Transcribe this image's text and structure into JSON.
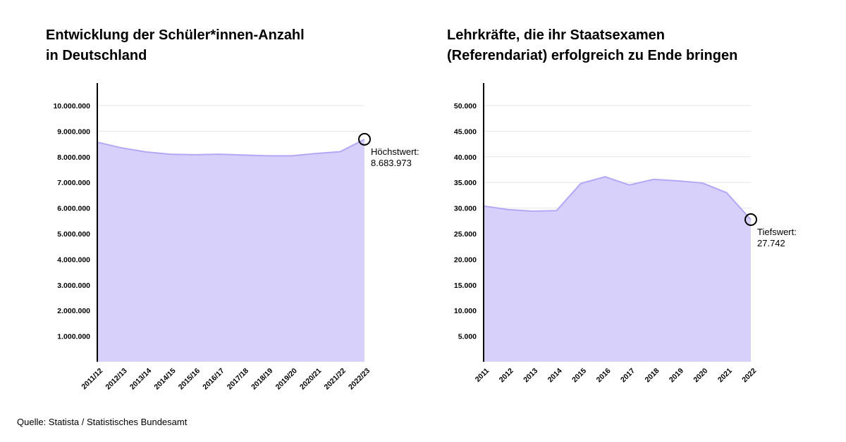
{
  "source": "Quelle: Statista / Statistisches Bundesamt",
  "colors": {
    "fill": "#d6d0fb",
    "line": "#b4a7f7",
    "grid": "#e6e6e6",
    "axis": "#000000"
  },
  "chart_data": [
    {
      "type": "area",
      "title_lines": [
        "Entwicklung der Schüler*innen-Anzahl",
        "in Deutschland"
      ],
      "categories": [
        "2011/12",
        "2012/13",
        "2013/14",
        "2014/15",
        "2015/16",
        "2016/17",
        "2017/18",
        "2018/19",
        "2019/20",
        "2020/21",
        "2021/22",
        "2022/23"
      ],
      "values": [
        8570000,
        8350000,
        8190000,
        8100000,
        8080000,
        8100000,
        8070000,
        8040000,
        8040000,
        8130000,
        8200000,
        8683973
      ],
      "ylim": [
        0,
        10000000
      ],
      "yticks": [
        1000000,
        2000000,
        3000000,
        4000000,
        5000000,
        6000000,
        7000000,
        8000000,
        9000000,
        10000000
      ],
      "ytick_labels": [
        "1.000.000",
        "2.000.000",
        "3.000.000",
        "4.000.000",
        "5.000.000",
        "6.000.000",
        "7.000.000",
        "8.000.000",
        "9.000.000",
        "10.000.000"
      ],
      "grid": true,
      "annotation": {
        "index": 11,
        "label": "Höchstwert:",
        "value": "8.683.973"
      }
    },
    {
      "type": "area",
      "title_lines": [
        "Lehrkräfte, die ihr Staatsexamen",
        "(Referendariat) erfolgreich zu Ende bringen"
      ],
      "categories": [
        "2011",
        "2012",
        "2013",
        "2014",
        "2015",
        "2016",
        "2017",
        "2018",
        "2019",
        "2020",
        "2021",
        "2022"
      ],
      "values": [
        30400,
        29700,
        29400,
        29500,
        34800,
        36100,
        34500,
        35600,
        35300,
        34900,
        33000,
        27742
      ],
      "ylim": [
        0,
        50000
      ],
      "yticks": [
        5000,
        10000,
        15000,
        20000,
        25000,
        30000,
        35000,
        40000,
        45000,
        50000
      ],
      "ytick_labels": [
        "5.000",
        "10.000",
        "15.000",
        "20.000",
        "25.000",
        "30.000",
        "35.000",
        "40.000",
        "45.000",
        "50.000"
      ],
      "grid": true,
      "annotation": {
        "index": 11,
        "label": "Tiefswert:",
        "value": "27.742"
      }
    }
  ]
}
